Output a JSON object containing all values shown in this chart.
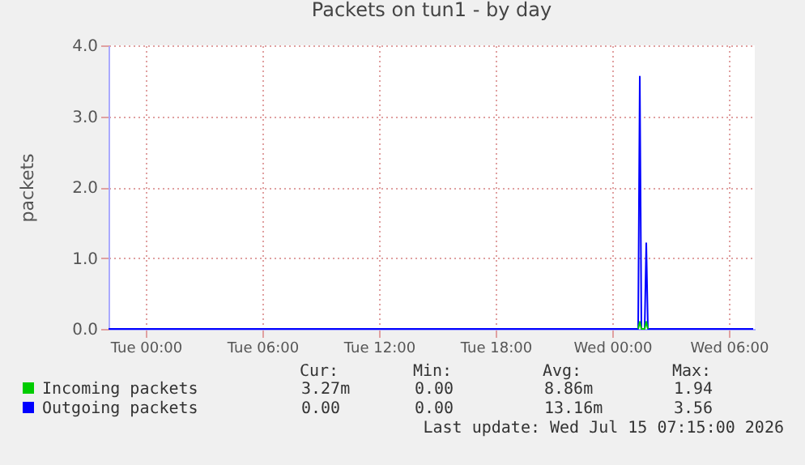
{
  "chart_data": {
    "type": "line",
    "title": "Packets on tun1 - by day",
    "ylabel": "packets",
    "xlim": [
      "2026-07-13T22:05",
      "2026-07-15T07:20"
    ],
    "xticks": [
      {
        "value": "2026-07-14T00:00",
        "label": "Tue 00:00"
      },
      {
        "value": "2026-07-14T06:00",
        "label": "Tue 06:00"
      },
      {
        "value": "2026-07-14T12:00",
        "label": "Tue 12:00"
      },
      {
        "value": "2026-07-14T18:00",
        "label": "Tue 18:00"
      },
      {
        "value": "2026-07-15T00:00",
        "label": "Wed 00:00"
      },
      {
        "value": "2026-07-15T06:00",
        "label": "Wed 06:00"
      }
    ],
    "ylim": [
      0,
      4
    ],
    "yticks": [
      {
        "value": 0,
        "label": "0.0"
      },
      {
        "value": 1,
        "label": "1.0"
      },
      {
        "value": 2,
        "label": "2.0"
      },
      {
        "value": 3,
        "label": "3.0"
      },
      {
        "value": 4,
        "label": "4.0"
      }
    ],
    "grid": true,
    "legend": "bottom",
    "series": [
      {
        "name": "Incoming packets",
        "color": "#00cc00",
        "x": [
          "2026-07-15T01:20",
          "2026-07-15T01:25",
          "2026-07-15T01:30",
          "2026-07-15T01:40",
          "2026-07-15T01:45",
          "2026-07-15T01:50"
        ],
        "values": [
          0,
          0.1,
          0,
          0,
          0.1,
          0
        ]
      },
      {
        "name": "Outgoing packets",
        "color": "#0000ff",
        "x": [
          "2026-07-13T22:05",
          "2026-07-15T01:20",
          "2026-07-15T01:25",
          "2026-07-15T01:30",
          "2026-07-15T01:40",
          "2026-07-15T01:45",
          "2026-07-15T01:50",
          "2026-07-15T07:15"
        ],
        "values": [
          0,
          0,
          3.56,
          0,
          0,
          1.21,
          0,
          0
        ]
      }
    ],
    "annotations": [
      "Cur:",
      "Min:",
      "Avg:",
      "Max:",
      "3.27m",
      "0.00",
      "8.86m",
      "1.94",
      "0.00",
      "0.00",
      "13.16m",
      "3.56",
      "Last update: Wed Jul 15 07:15:00 2026"
    ]
  }
}
